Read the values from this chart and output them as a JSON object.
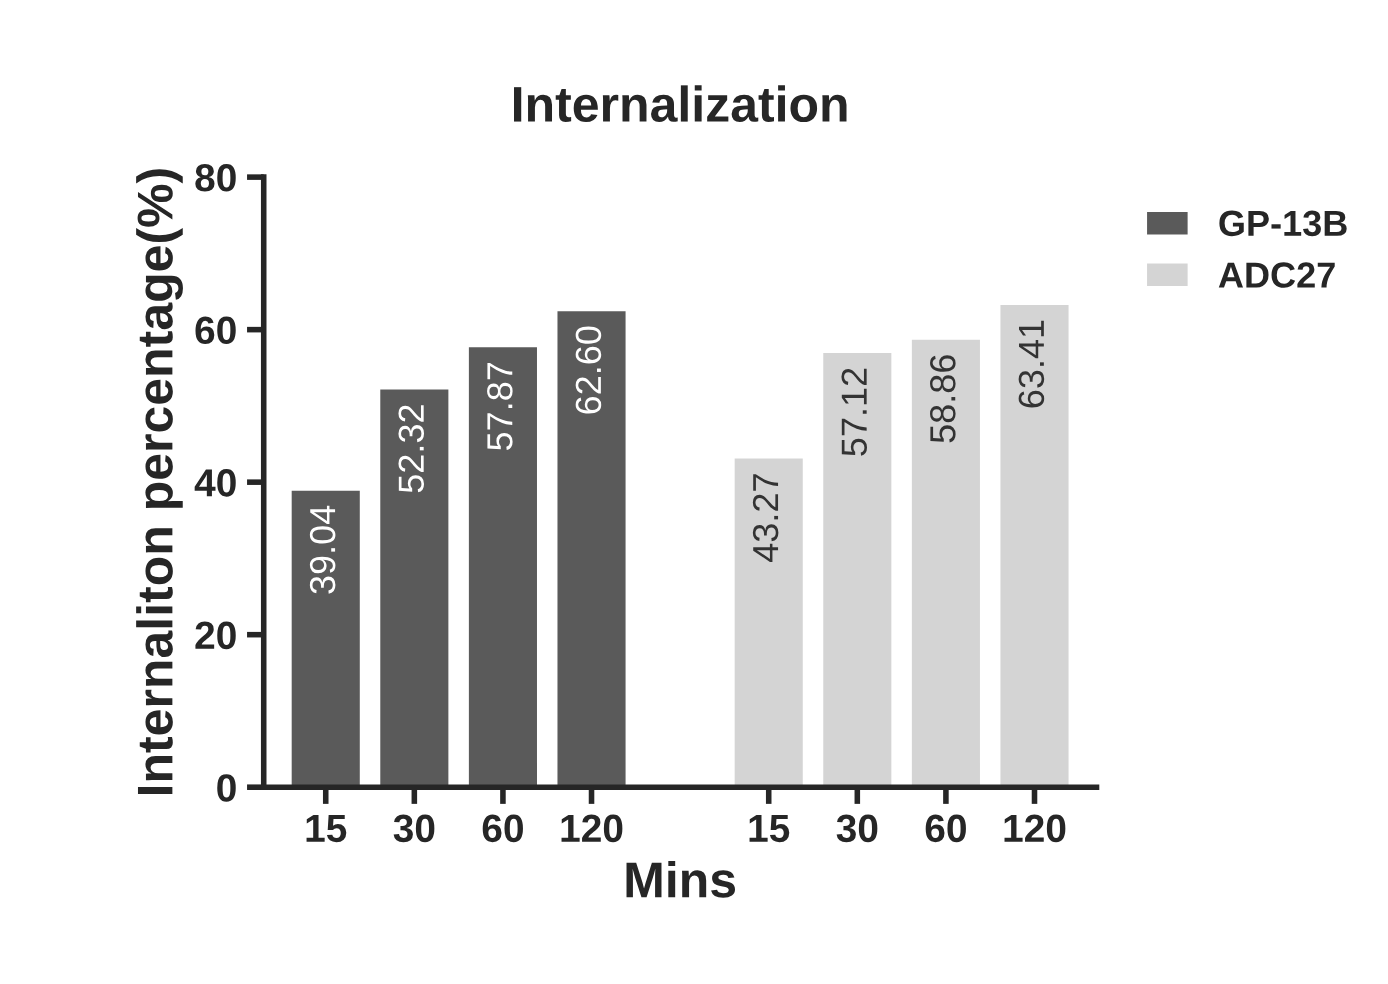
{
  "chart_data": {
    "type": "bar",
    "title": "Internalization",
    "xlabel": "Mins",
    "ylabel": "Internaliton percentage(%)",
    "categories": [
      "15",
      "30",
      "60",
      "120",
      "15",
      "30",
      "60",
      "120"
    ],
    "series": [
      {
        "name": "GP-13B",
        "color": "#5a5a5a",
        "values": [
          39.04,
          52.32,
          57.87,
          62.6,
          null,
          null,
          null,
          null
        ],
        "value_labels": [
          "39.04",
          "52.32",
          "57.87",
          "62.60",
          null,
          null,
          null,
          null
        ]
      },
      {
        "name": "ADC27",
        "color": "#d4d4d4",
        "values": [
          null,
          null,
          null,
          null,
          43.27,
          57.12,
          58.86,
          63.41
        ],
        "value_labels": [
          null,
          null,
          null,
          null,
          "43.27",
          "57.12",
          "58.86",
          "63.41"
        ]
      }
    ],
    "ylim": [
      0,
      80
    ],
    "yticks": [
      0,
      20,
      40,
      60,
      80
    ],
    "legend": "top right",
    "grid": false
  }
}
